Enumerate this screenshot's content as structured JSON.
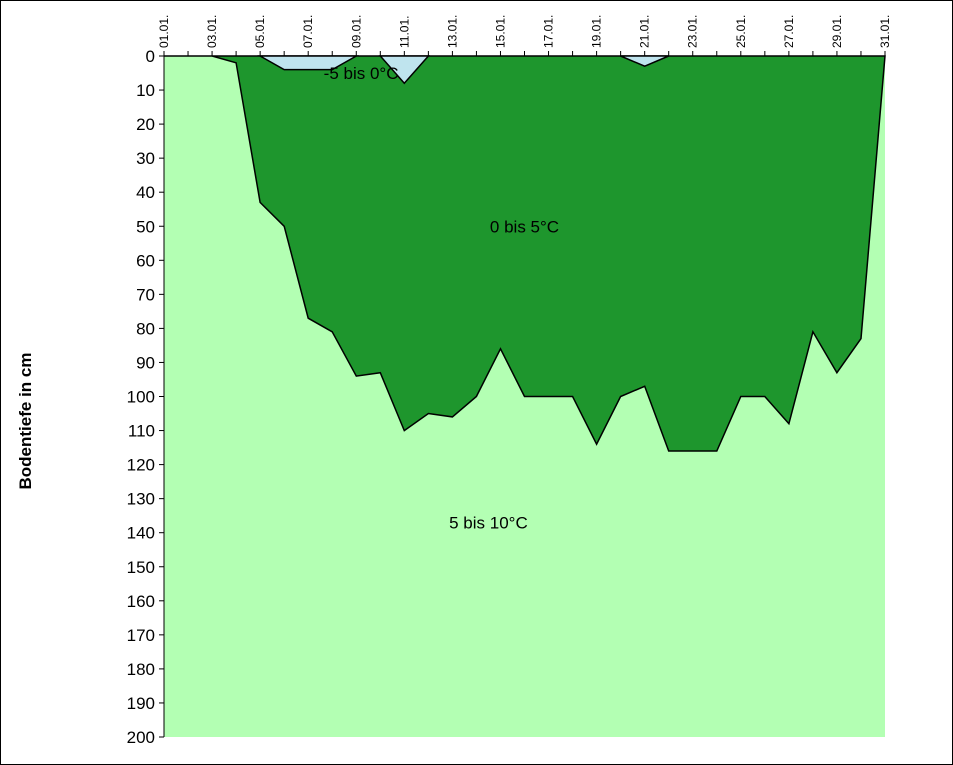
{
  "chart_data": {
    "type": "area",
    "title": "",
    "xlabel": "",
    "ylabel": "Bodentiefe in cm",
    "y_inverted": true,
    "ylim": [
      0,
      200
    ],
    "y_ticks": [
      0,
      10,
      20,
      30,
      40,
      50,
      60,
      70,
      80,
      90,
      100,
      110,
      120,
      130,
      140,
      150,
      160,
      170,
      180,
      190,
      200
    ],
    "x_ticks": [
      "01.01.",
      "03.01.",
      "05.01.",
      "07.01.",
      "09.01.",
      "11.01.",
      "13.01.",
      "15.01.",
      "17.01.",
      "19.01.",
      "21.01.",
      "23.01.",
      "25.01.",
      "27.01.",
      "29.01.",
      "31.01."
    ],
    "x_days": [
      1,
      2,
      3,
      4,
      5,
      6,
      7,
      8,
      9,
      10,
      11,
      12,
      13,
      14,
      15,
      16,
      17,
      18,
      19,
      20,
      21,
      22,
      23,
      24,
      25,
      26,
      27,
      28,
      29,
      30,
      31
    ],
    "grid": false,
    "legend": "none",
    "colors": {
      "warm": "#b3ffb3",
      "mid": "#1e962d",
      "cold": "#bfe4ee",
      "outline": "#000000"
    },
    "series": [
      {
        "name": "0 bis 5°C",
        "values": [
          0,
          0,
          0,
          2,
          43,
          50,
          77,
          81,
          94,
          93,
          110,
          105,
          106,
          100,
          86,
          100,
          100,
          100,
          114,
          100,
          97,
          116,
          116,
          116,
          100,
          100,
          108,
          81,
          93,
          83,
          0
        ]
      },
      {
        "name": "-5 bis 0°C",
        "values": [
          0,
          0,
          0,
          0,
          0,
          4,
          4,
          4,
          0,
          0,
          8,
          0,
          0,
          0,
          0,
          0,
          0,
          0,
          0,
          0,
          3,
          0,
          0,
          0,
          0,
          0,
          0,
          0,
          0,
          0,
          0
        ]
      }
    ],
    "region_labels": [
      {
        "text": "-5 bis 0°C",
        "day": 9.2,
        "depth": 5
      },
      {
        "text": "0 bis 5°C",
        "day": 16,
        "depth": 50
      },
      {
        "text": "5 bis 10°C",
        "day": 14.5,
        "depth": 137
      }
    ]
  }
}
